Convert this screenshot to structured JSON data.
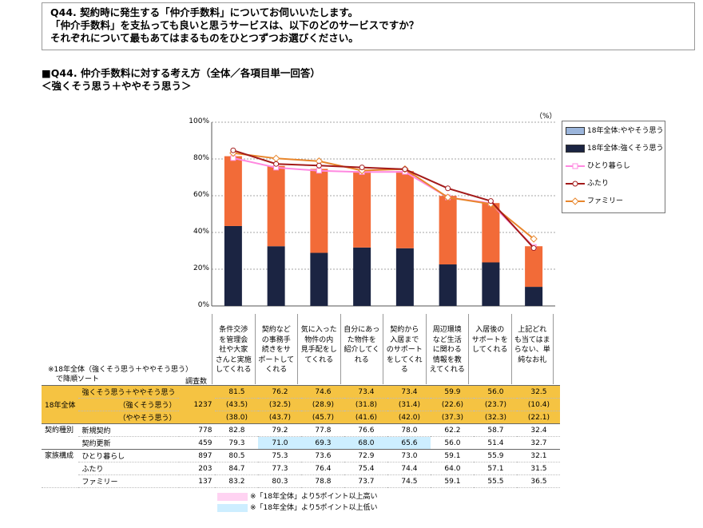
{
  "question": {
    "line1": "Q44. 契約時に発生する「仲介手数料」についてお伺いいたします。",
    "line2": "「仲介手数料」を支払っても良いと思うサービスは、以下のどのサービスですか？",
    "line3": "それぞれについて最もあてはまるものをひとつずつお選びください。"
  },
  "chart_title": "■Q44. 仲介手数料に対する考え方（全体／各項目単一回答）",
  "chart_subtitle": "＜強くそう思う＋ややそう思う＞",
  "unit": "（%）",
  "legend": {
    "some": "18年全体:ややそう思う",
    "strong": "18年全体:強くそう思う",
    "single": "ひとり暮らし",
    "couple": "ふたり",
    "family": "ファミリー"
  },
  "colors": {
    "strong": "#1b2442",
    "some": "#f26b38",
    "single": "#ff88e0",
    "couple": "#a31a1a",
    "family": "#e8862c",
    "legend_some": "#9bb5db"
  },
  "chart_data": {
    "type": "bar",
    "stacked": true,
    "ylim": [
      0,
      100
    ],
    "yticks": [
      "0%",
      "20%",
      "40%",
      "60%",
      "80%",
      "100%"
    ],
    "categories": [
      [
        "条件交渉",
        "を管理会",
        "社や大家",
        "さんと実施",
        "してくれる"
      ],
      [
        "契約など",
        "の事務手",
        "続きをサ",
        "ポートして",
        "くれる"
      ],
      [
        "気に入った",
        "物件の内",
        "見手配をし",
        "てくれる"
      ],
      [
        "自分にあっ",
        "た物件を",
        "紹介してく",
        "れる"
      ],
      [
        "契約から",
        "入居まで",
        "のサポート",
        "をしてくれ",
        "る"
      ],
      [
        "周辺環境",
        "など生活",
        "に関わる",
        "情報を教",
        "えてくれる"
      ],
      [
        "入居後の",
        "サポートを",
        "してくれる"
      ],
      [
        "上記どれ",
        "も当てはま",
        "らない、単",
        "純なお礼"
      ]
    ],
    "series": [
      {
        "name": "18年全体:強くそう思う",
        "values": [
          43.5,
          32.5,
          28.9,
          31.8,
          31.4,
          22.6,
          23.7,
          10.4
        ]
      },
      {
        "name": "18年全体:ややそう思う",
        "values": [
          38.0,
          43.7,
          45.7,
          41.6,
          42.0,
          37.3,
          32.3,
          22.1
        ]
      },
      {
        "name": "ひとり暮らし",
        "type": "line",
        "values": [
          80.5,
          75.3,
          73.6,
          72.9,
          73.0,
          59.1,
          55.9,
          32.1
        ]
      },
      {
        "name": "ふたり",
        "type": "line",
        "values": [
          84.7,
          77.3,
          76.4,
          75.4,
          74.4,
          64.0,
          57.1,
          31.5
        ]
      },
      {
        "name": "ファミリー",
        "type": "line",
        "values": [
          83.2,
          80.3,
          78.8,
          73.7,
          74.5,
          59.1,
          55.5,
          36.5
        ]
      }
    ]
  },
  "sort_note": [
    "※18年全体（強くそう思う＋ややそう思う）",
    "で降順ソート"
  ],
  "sample_header": "調査数",
  "table": {
    "total_label": "18年全体",
    "total_n": "1237",
    "rows_total": [
      {
        "label": "強くそう思う＋ややそう思う",
        "values": [
          "81.5",
          "76.2",
          "74.6",
          "73.4",
          "73.4",
          "59.9",
          "56.0",
          "32.5"
        ]
      },
      {
        "label": "（強くそう思う）",
        "values": [
          "(43.5)",
          "(32.5)",
          "(28.9)",
          "(31.8)",
          "(31.4)",
          "(22.6)",
          "(23.7)",
          "(10.4)"
        ]
      },
      {
        "label": "（ややそう思う）",
        "values": [
          "(38.0)",
          "(43.7)",
          "(45.7)",
          "(41.6)",
          "(42.0)",
          "(37.3)",
          "(32.3)",
          "(22.1)"
        ]
      }
    ],
    "contract_label": "契約種別",
    "contract": [
      {
        "label": "新規契約",
        "n": "778",
        "values": [
          "82.8",
          "79.2",
          "77.8",
          "76.6",
          "78.0",
          "62.2",
          "58.7",
          "32.4"
        ]
      },
      {
        "label": "契約更新",
        "n": "459",
        "values": [
          "79.3",
          "71.0",
          "69.3",
          "68.0",
          "65.6",
          "56.0",
          "51.4",
          "32.7"
        ]
      }
    ],
    "family_label": "家族構成",
    "family": [
      {
        "label": "ひとり暮らし",
        "n": "897",
        "values": [
          "80.5",
          "75.3",
          "73.6",
          "72.9",
          "73.0",
          "59.1",
          "55.9",
          "32.1"
        ]
      },
      {
        "label": "ふたり",
        "n": "203",
        "values": [
          "84.7",
          "77.3",
          "76.4",
          "75.4",
          "74.4",
          "64.0",
          "57.1",
          "31.5"
        ]
      },
      {
        "label": "ファミリー",
        "n": "137",
        "values": [
          "83.2",
          "80.3",
          "78.8",
          "73.7",
          "74.5",
          "59.1",
          "55.5",
          "36.5"
        ]
      }
    ]
  },
  "footnotes": {
    "high": "※「18年全体」より5ポイント以上高い",
    "low": "※「18年全体」より5ポイント以上低い"
  }
}
